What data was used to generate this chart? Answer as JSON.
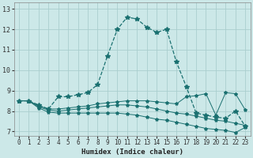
{
  "xlabel": "Humidex (Indice chaleur)",
  "bg_color": "#cce8e8",
  "grid_color": "#aacece",
  "line_color": "#1a7070",
  "xlim": [
    -0.5,
    23.5
  ],
  "ylim": [
    6.8,
    13.3
  ],
  "xticks": [
    0,
    1,
    2,
    3,
    4,
    5,
    6,
    7,
    8,
    9,
    10,
    11,
    12,
    13,
    14,
    15,
    16,
    17,
    18,
    19,
    20,
    21,
    22,
    23
  ],
  "yticks": [
    7,
    8,
    9,
    10,
    11,
    12,
    13
  ],
  "line1_x": [
    0,
    1,
    2,
    3,
    4,
    5,
    6,
    7,
    8,
    9,
    10,
    11,
    12,
    13,
    14,
    15,
    16,
    17,
    18,
    19,
    20,
    21,
    22,
    23
  ],
  "line1_y": [
    8.5,
    8.5,
    8.3,
    8.1,
    8.7,
    8.7,
    8.8,
    8.9,
    9.3,
    10.7,
    12.0,
    12.6,
    12.5,
    12.1,
    11.85,
    12.0,
    10.4,
    9.2,
    7.9,
    7.8,
    7.7,
    7.65,
    8.0,
    7.25
  ],
  "line2_x": [
    0,
    1,
    2,
    3,
    4,
    5,
    6,
    7,
    8,
    9,
    10,
    11,
    12,
    13,
    14,
    15,
    16,
    17,
    18,
    19,
    20,
    21,
    22,
    23
  ],
  "line2_y": [
    8.5,
    8.5,
    8.25,
    8.1,
    8.1,
    8.15,
    8.2,
    8.25,
    8.35,
    8.4,
    8.45,
    8.5,
    8.5,
    8.5,
    8.45,
    8.4,
    8.35,
    8.7,
    8.75,
    8.85,
    7.8,
    8.9,
    8.85,
    8.05
  ],
  "line3_x": [
    0,
    1,
    2,
    3,
    4,
    5,
    6,
    7,
    8,
    9,
    10,
    11,
    12,
    13,
    14,
    15,
    16,
    17,
    18,
    19,
    20,
    21,
    22,
    23
  ],
  "line3_y": [
    8.5,
    8.5,
    8.2,
    8.05,
    8.0,
    8.05,
    8.1,
    8.15,
    8.2,
    8.25,
    8.3,
    8.3,
    8.25,
    8.2,
    8.1,
    8.0,
    7.9,
    7.85,
    7.75,
    7.65,
    7.55,
    7.5,
    7.4,
    7.3
  ],
  "line4_x": [
    0,
    1,
    2,
    3,
    4,
    5,
    6,
    7,
    8,
    9,
    10,
    11,
    12,
    13,
    14,
    15,
    16,
    17,
    18,
    19,
    20,
    21,
    22,
    23
  ],
  "line4_y": [
    8.5,
    8.5,
    8.15,
    7.95,
    7.9,
    7.9,
    7.9,
    7.9,
    7.9,
    7.9,
    7.9,
    7.85,
    7.8,
    7.7,
    7.6,
    7.55,
    7.45,
    7.35,
    7.25,
    7.15,
    7.1,
    7.05,
    6.95,
    7.2
  ]
}
